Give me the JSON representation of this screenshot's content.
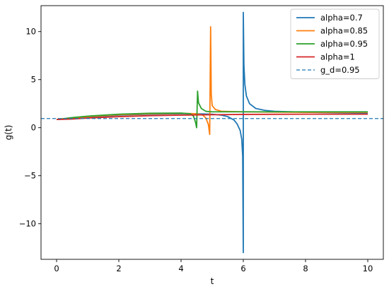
{
  "chart_data": {
    "type": "line",
    "title": "",
    "xlabel": "t",
    "ylabel": "g(t)",
    "xlim": [
      -0.5,
      10.5
    ],
    "ylim": [
      -13.7,
      12.7
    ],
    "xticks": [
      0,
      2,
      4,
      6,
      8,
      10
    ],
    "yticks": [
      -10,
      -5,
      0,
      5,
      10
    ],
    "grid": false,
    "legend_placement": "top-right",
    "series": [
      {
        "name": "alpha=0.7",
        "color": "#1f77b4",
        "style": "solid",
        "points": [
          [
            0,
            0.85
          ],
          [
            0.5,
            0.95
          ],
          [
            1,
            1.1
          ],
          [
            2,
            1.3
          ],
          [
            3,
            1.4
          ],
          [
            4,
            1.45
          ],
          [
            4.5,
            1.45
          ],
          [
            5,
            1.4
          ],
          [
            5.3,
            1.3
          ],
          [
            5.5,
            1.15
          ],
          [
            5.7,
            0.8
          ],
          [
            5.8,
            0.4
          ],
          [
            5.9,
            -0.3
          ],
          [
            5.95,
            -1.2
          ],
          [
            5.98,
            -3.0
          ],
          [
            6.0,
            -13.0
          ],
          [
            6.0,
            12.0
          ],
          [
            6.02,
            6.5
          ],
          [
            6.05,
            4.5
          ],
          [
            6.1,
            3.3
          ],
          [
            6.2,
            2.5
          ],
          [
            6.4,
            2.0
          ],
          [
            6.7,
            1.8
          ],
          [
            7,
            1.7
          ],
          [
            8,
            1.6
          ],
          [
            9,
            1.55
          ],
          [
            10,
            1.5
          ]
        ]
      },
      {
        "name": "alpha=0.85",
        "color": "#ff7f0e",
        "style": "solid",
        "points": [
          [
            0,
            0.85
          ],
          [
            0.5,
            1.0
          ],
          [
            1,
            1.15
          ],
          [
            2,
            1.35
          ],
          [
            3,
            1.45
          ],
          [
            4,
            1.5
          ],
          [
            4.5,
            1.45
          ],
          [
            4.7,
            1.3
          ],
          [
            4.8,
            1.0
          ],
          [
            4.88,
            0.3
          ],
          [
            4.92,
            -0.7
          ],
          [
            4.95,
            10.5
          ],
          [
            4.97,
            3.5
          ],
          [
            5.0,
            2.3
          ],
          [
            5.1,
            1.9
          ],
          [
            5.3,
            1.7
          ],
          [
            6,
            1.65
          ],
          [
            8,
            1.6
          ],
          [
            10,
            1.6
          ]
        ]
      },
      {
        "name": "alpha=0.95",
        "color": "#2ca02c",
        "style": "solid",
        "points": [
          [
            0,
            0.85
          ],
          [
            0.5,
            1.05
          ],
          [
            1,
            1.2
          ],
          [
            2,
            1.4
          ],
          [
            3,
            1.5
          ],
          [
            4,
            1.52
          ],
          [
            4.3,
            1.45
          ],
          [
            4.4,
            1.2
          ],
          [
            4.47,
            0.5
          ],
          [
            4.5,
            0.0
          ],
          [
            4.53,
            3.8
          ],
          [
            4.56,
            2.6
          ],
          [
            4.65,
            2.0
          ],
          [
            4.8,
            1.7
          ],
          [
            5,
            1.65
          ],
          [
            6,
            1.65
          ],
          [
            8,
            1.65
          ],
          [
            10,
            1.65
          ]
        ]
      },
      {
        "name": "alpha=1",
        "color": "#d62728",
        "style": "solid",
        "points": [
          [
            0,
            0.85
          ],
          [
            0.5,
            0.9
          ],
          [
            1,
            1.0
          ],
          [
            2,
            1.15
          ],
          [
            3,
            1.25
          ],
          [
            4,
            1.3
          ],
          [
            5,
            1.35
          ],
          [
            6,
            1.38
          ],
          [
            8,
            1.4
          ],
          [
            10,
            1.4
          ]
        ]
      },
      {
        "name": "g_d=0.95",
        "color": "#1f77b4",
        "style": "dashed",
        "points": [
          [
            -0.5,
            0.95
          ],
          [
            10.5,
            0.95
          ]
        ]
      }
    ]
  }
}
